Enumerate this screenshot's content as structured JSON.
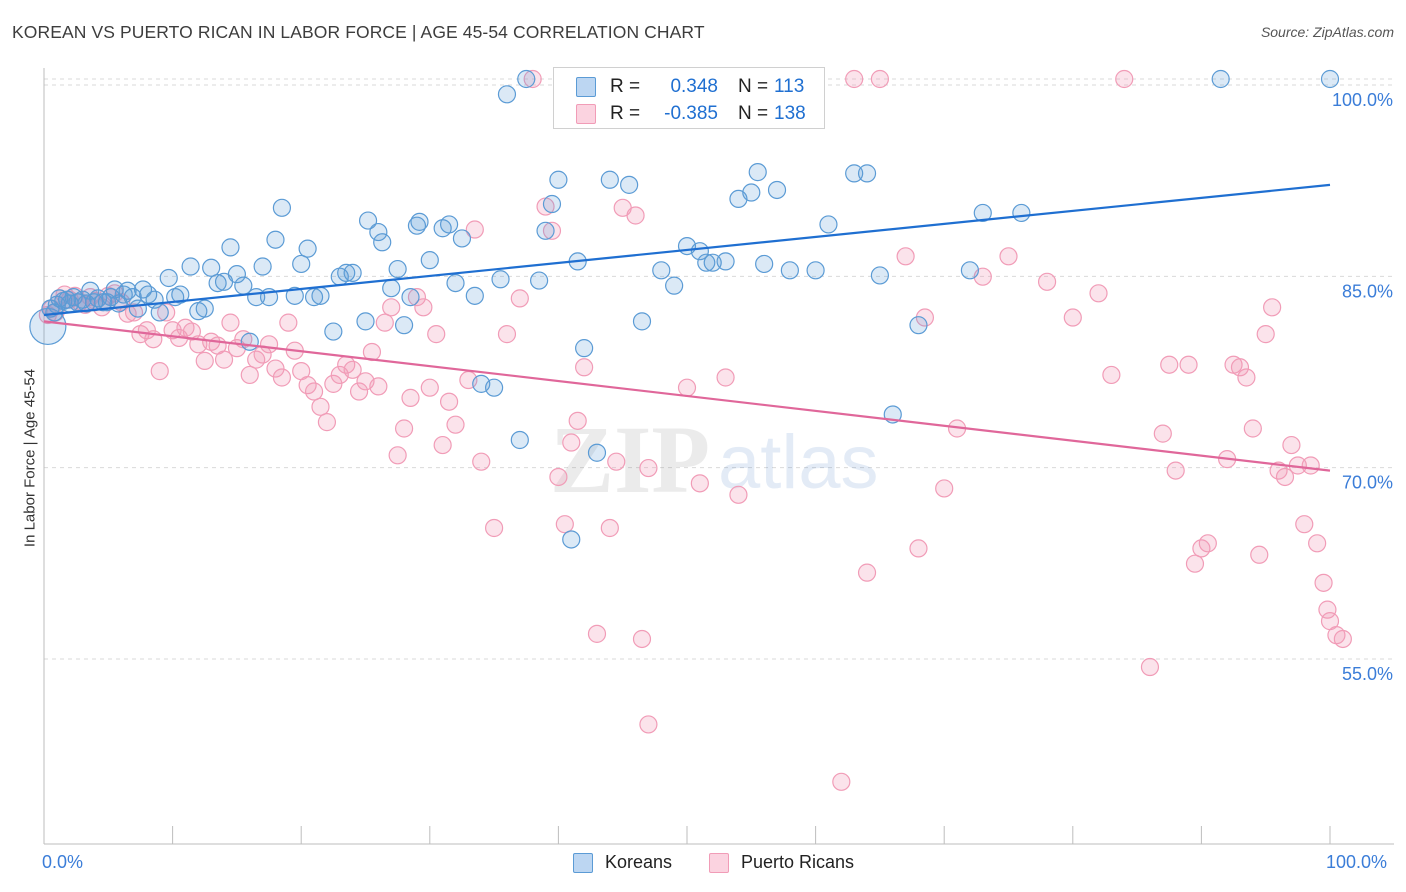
{
  "header": {
    "title": "KOREAN VS PUERTO RICAN IN LABOR FORCE | AGE 45-54 CORRELATION CHART",
    "source": "Source: ZipAtlas.com"
  },
  "watermark": {
    "zip": "ZIP",
    "atlas": "atlas"
  },
  "legend": {
    "rows": [
      {
        "label": "R =",
        "r": "0.348",
        "n_label": "N =",
        "n": "113",
        "color": "#5b9bd5"
      },
      {
        "label": "R =",
        "r": "-0.385",
        "n_label": "N =",
        "n": "138",
        "color": "#f19cb7"
      }
    ]
  },
  "bottom_legend": {
    "koreans": "Koreans",
    "puerto_ricans": "Puerto Ricans"
  },
  "x_axis": {
    "min_label": "0.0%",
    "max_label": "100.0%"
  },
  "colors": {
    "blue": "#5b9bd5",
    "blue_line": "#1f6fd1",
    "pink": "#f19cb7",
    "pink_line": "#e0679a",
    "tick_label": "#3b7dd8"
  },
  "chart_data": {
    "type": "scatter",
    "title": "KOREAN VS PUERTO RICAN IN LABOR FORCE | AGE 45-54 CORRELATION CHART",
    "xlabel": "",
    "ylabel": "In Labor Force | Age 45-54",
    "xlim": [
      0,
      100
    ],
    "ylim": [
      39.5,
      101.5
    ],
    "y_ticks": [
      {
        "value": 55,
        "label": "55.0%"
      },
      {
        "value": 70,
        "label": "70.0%"
      },
      {
        "value": 85,
        "label": "85.0%"
      },
      {
        "value": 100,
        "label": "100.0%"
      }
    ],
    "grid": true,
    "legend_position": "top-center",
    "series": [
      {
        "name": "Koreans",
        "color": "#5b9bd5",
        "trend": {
          "x": [
            0,
            100
          ],
          "y": [
            81.5,
            91.7
          ]
        },
        "points": [
          [
            0.3,
            80.6
          ],
          [
            0.5,
            82.0
          ],
          [
            0.8,
            81.7
          ],
          [
            1,
            82.3
          ],
          [
            1.2,
            82.8
          ],
          [
            1.5,
            82.6
          ],
          [
            1.8,
            82.7
          ],
          [
            2,
            82.4
          ],
          [
            2.3,
            82.9
          ],
          [
            2.6,
            82.5
          ],
          [
            3,
            82.7
          ],
          [
            3.3,
            82.4
          ],
          [
            3.6,
            83.4
          ],
          [
            3.9,
            82.5
          ],
          [
            4.2,
            82.8
          ],
          [
            4.6,
            82.5
          ],
          [
            4.9,
            82.5
          ],
          [
            5.2,
            82.9
          ],
          [
            5.5,
            83.5
          ],
          [
            5.8,
            82.4
          ],
          [
            6.2,
            83.1
          ],
          [
            6.5,
            83.4
          ],
          [
            6.9,
            82.9
          ],
          [
            7.3,
            82.0
          ],
          [
            7.7,
            83.5
          ],
          [
            8.1,
            83.1
          ],
          [
            8.6,
            82.7
          ],
          [
            9,
            81.7
          ],
          [
            9.7,
            84.4
          ],
          [
            10.2,
            82.9
          ],
          [
            10.6,
            83.1
          ],
          [
            11.4,
            85.3
          ],
          [
            12,
            81.8
          ],
          [
            12.5,
            82.0
          ],
          [
            13,
            85.2
          ],
          [
            13.5,
            84.0
          ],
          [
            14,
            84.1
          ],
          [
            14.5,
            86.8
          ],
          [
            15,
            84.7
          ],
          [
            15.5,
            83.8
          ],
          [
            16,
            79.4
          ],
          [
            16.5,
            82.9
          ],
          [
            17,
            85.3
          ],
          [
            17.5,
            82.9
          ],
          [
            18,
            87.4
          ],
          [
            18.5,
            89.9
          ],
          [
            19.5,
            83.0
          ],
          [
            20,
            85.5
          ],
          [
            20.5,
            86.7
          ],
          [
            21,
            82.9
          ],
          [
            21.5,
            83.0
          ],
          [
            22.5,
            80.2
          ],
          [
            23,
            84.5
          ],
          [
            23.5,
            84.8
          ],
          [
            24,
            84.8
          ],
          [
            25,
            81.0
          ],
          [
            25.2,
            88.9
          ],
          [
            26,
            88.0
          ],
          [
            26.3,
            87.2
          ],
          [
            27,
            83.6
          ],
          [
            27.5,
            85.1
          ],
          [
            28,
            80.7
          ],
          [
            28.5,
            82.9
          ],
          [
            29,
            88.5
          ],
          [
            29.2,
            88.8
          ],
          [
            30,
            85.8
          ],
          [
            31,
            88.3
          ],
          [
            31.5,
            88.6
          ],
          [
            32,
            84.0
          ],
          [
            32.5,
            87.5
          ],
          [
            33.5,
            83.0
          ],
          [
            34,
            76.1
          ],
          [
            35,
            75.8
          ],
          [
            35.5,
            84.3
          ],
          [
            36,
            98.8
          ],
          [
            37,
            71.7
          ],
          [
            37.5,
            100
          ],
          [
            38.5,
            84.2
          ],
          [
            39,
            88.1
          ],
          [
            39.5,
            90.2
          ],
          [
            40,
            92.1
          ],
          [
            41,
            63.9
          ],
          [
            41.5,
            85.7
          ],
          [
            42,
            78.9
          ],
          [
            43,
            70.7
          ],
          [
            44,
            92.1
          ],
          [
            45.5,
            91.7
          ],
          [
            46.5,
            81.0
          ],
          [
            48,
            85.0
          ],
          [
            49,
            83.8
          ],
          [
            50,
            86.9
          ],
          [
            51,
            86.5
          ],
          [
            51.5,
            85.6
          ],
          [
            52,
            85.6
          ],
          [
            53,
            85.7
          ],
          [
            54,
            90.6
          ],
          [
            55,
            91.1
          ],
          [
            55.5,
            92.7
          ],
          [
            56,
            85.5
          ],
          [
            57,
            91.3
          ],
          [
            58,
            85.0
          ],
          [
            60,
            85.0
          ],
          [
            61,
            88.6
          ],
          [
            63,
            92.6
          ],
          [
            64,
            92.6
          ],
          [
            65,
            84.6
          ],
          [
            66,
            73.7
          ],
          [
            68,
            80.7
          ],
          [
            72,
            85.0
          ],
          [
            73,
            89.5
          ],
          [
            76,
            89.5
          ],
          [
            91.5,
            100
          ],
          [
            100,
            100
          ]
        ]
      },
      {
        "name": "Puerto Ricans",
        "color": "#f19cb7",
        "trend": {
          "x": [
            0,
            100
          ],
          "y": [
            81.0,
            69.3
          ]
        },
        "points": [
          [
            0.3,
            81.5
          ],
          [
            0.6,
            82.0
          ],
          [
            0.9,
            81.7
          ],
          [
            1.2,
            82.8
          ],
          [
            1.6,
            83.1
          ],
          [
            2,
            82.7
          ],
          [
            2.4,
            83.0
          ],
          [
            2.8,
            82.5
          ],
          [
            3.2,
            82.3
          ],
          [
            3.6,
            82.9
          ],
          [
            4,
            82.6
          ],
          [
            4.5,
            82.1
          ],
          [
            5,
            83.0
          ],
          [
            5.5,
            83.2
          ],
          [
            6,
            82.5
          ],
          [
            6.5,
            81.6
          ],
          [
            7,
            81.7
          ],
          [
            7.5,
            80.0
          ],
          [
            8,
            80.3
          ],
          [
            8.5,
            79.6
          ],
          [
            9,
            77.1
          ],
          [
            9.5,
            81.7
          ],
          [
            10,
            80.3
          ],
          [
            10.5,
            79.7
          ],
          [
            11,
            80.5
          ],
          [
            11.5,
            80.2
          ],
          [
            12,
            79.2
          ],
          [
            12.5,
            77.9
          ],
          [
            13,
            79.4
          ],
          [
            13.5,
            79.1
          ],
          [
            14,
            78.0
          ],
          [
            14.5,
            80.9
          ],
          [
            15,
            78.9
          ],
          [
            15.5,
            79.6
          ],
          [
            16,
            76.8
          ],
          [
            16.5,
            78.0
          ],
          [
            17,
            78.4
          ],
          [
            17.5,
            79.2
          ],
          [
            18,
            77.3
          ],
          [
            18.5,
            76.6
          ],
          [
            19,
            80.9
          ],
          [
            19.5,
            78.7
          ],
          [
            20,
            77.1
          ],
          [
            20.5,
            76.0
          ],
          [
            21,
            75.5
          ],
          [
            21.5,
            74.3
          ],
          [
            22,
            73.1
          ],
          [
            22.5,
            76.1
          ],
          [
            23,
            76.8
          ],
          [
            23.5,
            77.6
          ],
          [
            24,
            77.2
          ],
          [
            24.5,
            75.5
          ],
          [
            25,
            76.3
          ],
          [
            25.5,
            78.6
          ],
          [
            26,
            75.9
          ],
          [
            26.5,
            80.9
          ],
          [
            27,
            82.1
          ],
          [
            27.5,
            70.5
          ],
          [
            28,
            72.6
          ],
          [
            28.5,
            75.0
          ],
          [
            29,
            82.9
          ],
          [
            29.5,
            82.1
          ],
          [
            30,
            75.8
          ],
          [
            30.5,
            80.0
          ],
          [
            31,
            71.3
          ],
          [
            31.5,
            74.7
          ],
          [
            32,
            72.9
          ],
          [
            33,
            76.4
          ],
          [
            33.5,
            88.2
          ],
          [
            34,
            70.0
          ],
          [
            35,
            64.8
          ],
          [
            36,
            80.0
          ],
          [
            37,
            82.8
          ],
          [
            38,
            100
          ],
          [
            39,
            90.0
          ],
          [
            39.5,
            88.1
          ],
          [
            40,
            68.8
          ],
          [
            40.5,
            65.1
          ],
          [
            41,
            71.5
          ],
          [
            41.5,
            73.2
          ],
          [
            42,
            77.4
          ],
          [
            43,
            56.5
          ],
          [
            44,
            64.8
          ],
          [
            44.5,
            70.0
          ],
          [
            45,
            89.9
          ],
          [
            46,
            89.3
          ],
          [
            46.5,
            56.1
          ],
          [
            47,
            49.4
          ],
          [
            47,
            69.5
          ],
          [
            48,
            100
          ],
          [
            50,
            75.8
          ],
          [
            51,
            68.3
          ],
          [
            53,
            76.6
          ],
          [
            54,
            67.4
          ],
          [
            62,
            44.9
          ],
          [
            63,
            100
          ],
          [
            64,
            61.3
          ],
          [
            65,
            100
          ],
          [
            67,
            86.1
          ],
          [
            68,
            63.2
          ],
          [
            68.5,
            81.3
          ],
          [
            70,
            67.9
          ],
          [
            71,
            72.6
          ],
          [
            73,
            84.5
          ],
          [
            75,
            86.1
          ],
          [
            78,
            84.1
          ],
          [
            80,
            81.3
          ],
          [
            82,
            83.2
          ],
          [
            83,
            76.8
          ],
          [
            84,
            100
          ],
          [
            86,
            53.9
          ],
          [
            87,
            72.2
          ],
          [
            87.5,
            77.6
          ],
          [
            88,
            69.3
          ],
          [
            89,
            77.6
          ],
          [
            89.5,
            62.0
          ],
          [
            90,
            63.2
          ],
          [
            90.5,
            63.6
          ],
          [
            92,
            70.2
          ],
          [
            92.5,
            77.6
          ],
          [
            93,
            77.4
          ],
          [
            93.5,
            76.6
          ],
          [
            94,
            72.6
          ],
          [
            94.5,
            62.7
          ],
          [
            95,
            80.0
          ],
          [
            95.5,
            82.1
          ],
          [
            96,
            69.3
          ],
          [
            96.5,
            68.8
          ],
          [
            97,
            71.3
          ],
          [
            97.5,
            69.7
          ],
          [
            98,
            65.1
          ],
          [
            98.5,
            69.7
          ],
          [
            99,
            63.6
          ],
          [
            99.5,
            60.5
          ],
          [
            99.8,
            58.4
          ],
          [
            100,
            57.5
          ],
          [
            100.5,
            56.4
          ],
          [
            101,
            56.1
          ]
        ]
      }
    ]
  }
}
